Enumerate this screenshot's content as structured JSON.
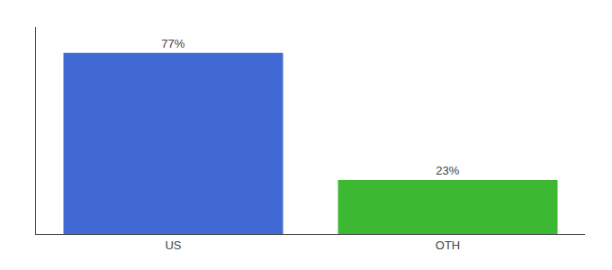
{
  "chart_data": {
    "type": "bar",
    "categories": [
      "US",
      "OTH"
    ],
    "values": [
      77,
      23
    ],
    "value_labels": [
      "77%",
      "23%"
    ],
    "colors": [
      "#4169d4",
      "#3cb832"
    ],
    "ylim": [
      0,
      88
    ],
    "yticks": [],
    "tick_labels": "x",
    "data_labels": true,
    "grid": false
  }
}
